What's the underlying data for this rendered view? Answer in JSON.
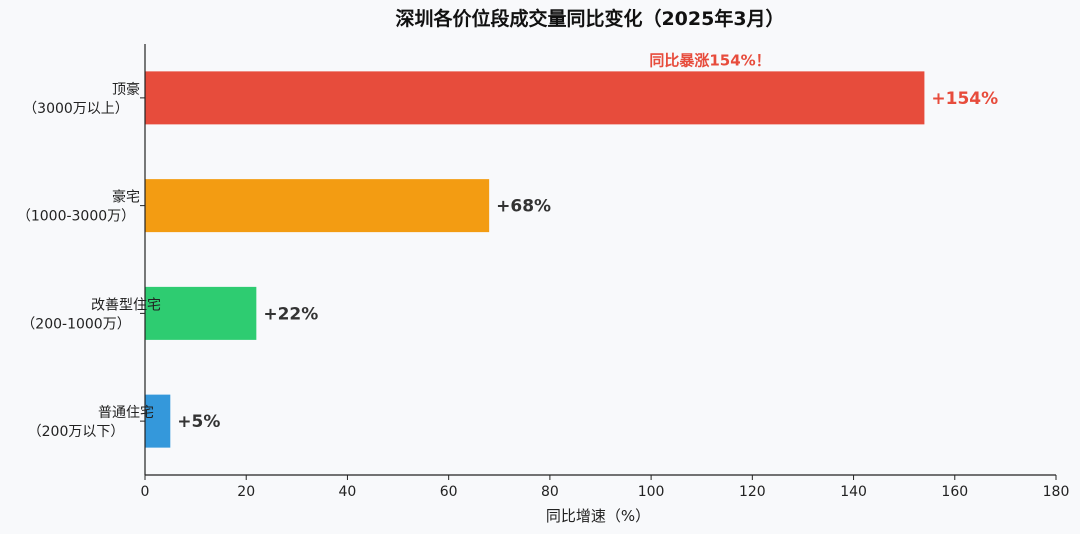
{
  "chart_data": {
    "type": "bar",
    "orientation": "horizontal",
    "title": "深圳各价位段成交量同比变化（2025年3月）",
    "xlabel": "同比增速（%）",
    "ylabel": "",
    "xlim": [
      0,
      180
    ],
    "xticks": [
      0,
      20,
      40,
      60,
      80,
      100,
      120,
      140,
      160,
      180
    ],
    "grid": false,
    "categories": [
      {
        "line1": "顶豪",
        "line2": "（3000万以上）"
      },
      {
        "line1": "豪宅",
        "line2": "（1000-3000万）"
      },
      {
        "line1": "改善型住宅",
        "line2": "（200-1000万）"
      },
      {
        "line1": "普通住宅",
        "line2": "（200万以下）"
      }
    ],
    "values": [
      154,
      68,
      22,
      5
    ],
    "value_labels": [
      "+154%",
      "+68%",
      "+22%",
      "+5%"
    ],
    "colors": [
      "#e74c3c",
      "#f39c12",
      "#2ecc71",
      "#3498db"
    ],
    "value_label_colors": [
      "#e74c3c",
      "#333333",
      "#333333",
      "#333333"
    ],
    "annotation": {
      "text": "同比暴涨154%！",
      "category_index": 0,
      "color": "#e74c3c"
    }
  }
}
